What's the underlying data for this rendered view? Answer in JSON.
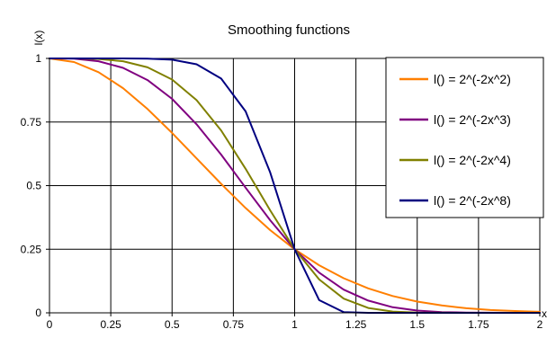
{
  "chart_data": {
    "type": "line",
    "title": "Smoothing functions",
    "xlabel": "x",
    "ylabel": "l(x)",
    "xlim": [
      0,
      2
    ],
    "ylim": [
      0,
      1
    ],
    "x_ticks": [
      0,
      0.25,
      0.5,
      0.75,
      1,
      1.25,
      1.5,
      1.75,
      2
    ],
    "x_tick_labels": [
      "0",
      "0.25",
      "0.5",
      "0.75",
      "1",
      "1.25",
      "1.5",
      "1.75",
      "2"
    ],
    "y_ticks": [
      0,
      0.25,
      0.5,
      0.75,
      1
    ],
    "y_tick_labels": [
      "0",
      "0.25",
      "0.5",
      "0.75",
      "1"
    ],
    "grid": "vertical and horizontal",
    "legend_position": "top-right",
    "x": [
      0,
      0.1,
      0.2,
      0.3,
      0.4,
      0.5,
      0.6,
      0.7,
      0.8,
      0.9,
      1,
      1.1,
      1.2,
      1.3,
      1.4,
      1.5,
      1.6,
      1.7,
      1.8,
      1.9,
      2
    ],
    "series": [
      {
        "name": "l() = 2^(-2x^2)",
        "color": "#FF7F00",
        "values": [
          1,
          0.986,
          0.946,
          0.883,
          0.801,
          0.707,
          0.607,
          0.507,
          0.412,
          0.325,
          0.25,
          0.187,
          0.136,
          0.096,
          0.066,
          0.044,
          0.029,
          0.018,
          0.011,
          0.007,
          0.004
        ]
      },
      {
        "name": "l() = 2^(-2x^3)",
        "color": "#800080",
        "values": [
          1,
          0.999,
          0.989,
          0.963,
          0.915,
          0.841,
          0.741,
          0.622,
          0.492,
          0.364,
          0.25,
          0.158,
          0.091,
          0.048,
          0.022,
          0.009,
          0.003,
          0.001,
          0.0003,
          0.0001,
          0
        ]
      },
      {
        "name": "l() = 2^(-2x^4)",
        "color": "#808000",
        "values": [
          1,
          1,
          0.998,
          0.989,
          0.965,
          0.917,
          0.836,
          0.717,
          0.566,
          0.403,
          0.25,
          0.131,
          0.056,
          0.019,
          0.005,
          0.001,
          0.0002,
          0,
          0,
          0,
          0
        ]
      },
      {
        "name": "l() = 2^(-2x^8)",
        "color": "#000080",
        "values": [
          1,
          1,
          1,
          1,
          0.999,
          0.995,
          0.977,
          0.921,
          0.792,
          0.552,
          0.25,
          0.05,
          0.003,
          0,
          0,
          0,
          0,
          0,
          0,
          0,
          0
        ]
      }
    ]
  }
}
